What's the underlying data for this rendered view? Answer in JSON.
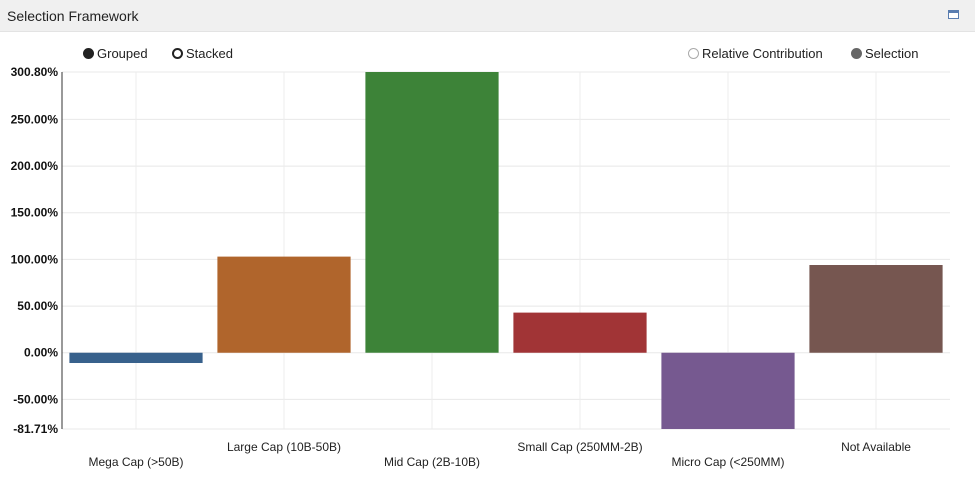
{
  "panel": {
    "title": "Selection Framework",
    "maximize_icon": "maximize-icon"
  },
  "legend": {
    "left": [
      {
        "label": "Grouped",
        "icon": "filled-circle-icon"
      },
      {
        "label": "Stacked",
        "icon": "hollow-circle-icon"
      }
    ],
    "right": [
      {
        "label": "Relative Contribution",
        "icon": "hollow-circle-icon"
      },
      {
        "label": "Selection",
        "icon": "filled-circle-icon"
      }
    ]
  },
  "chart_data": {
    "type": "bar",
    "title": "Selection Framework",
    "xlabel": "",
    "ylabel": "",
    "ylim": [
      -81.71,
      300.8
    ],
    "grid": true,
    "y_ticks": [
      {
        "value": 300.8,
        "label": "300.80%"
      },
      {
        "value": 250,
        "label": "250.00%"
      },
      {
        "value": 200,
        "label": "200.00%"
      },
      {
        "value": 150,
        "label": "150.00%"
      },
      {
        "value": 100,
        "label": "100.00%"
      },
      {
        "value": 50,
        "label": "50.00%"
      },
      {
        "value": 0,
        "label": "0.00%"
      },
      {
        "value": -50,
        "label": "-50.00%"
      },
      {
        "value": -81.71,
        "label": "-81.71%"
      }
    ],
    "categories": [
      "Mega Cap (>50B)",
      "Large Cap (10B-50B)",
      "Mid Cap (2B-10B)",
      "Small Cap (250MM-2B)",
      "Micro Cap (<250MM)",
      "Not Available"
    ],
    "values": [
      -11,
      103,
      300.8,
      43,
      -81.71,
      94
    ],
    "colors": [
      "#38618c",
      "#b0652c",
      "#3d8338",
      "#a13436",
      "#765990",
      "#765650"
    ],
    "label_stagger": [
      "low",
      "high",
      "low",
      "high",
      "low",
      "high"
    ]
  }
}
